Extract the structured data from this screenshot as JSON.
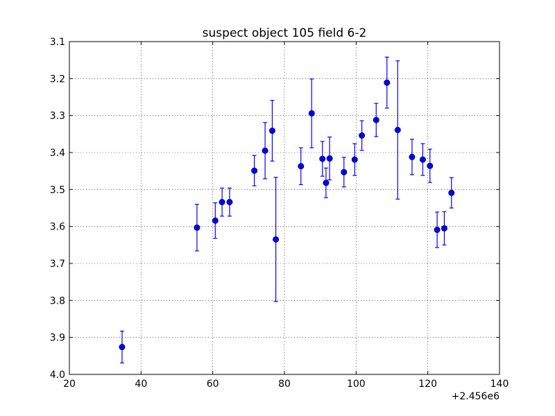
{
  "chart_data": {
    "type": "scatter",
    "title": "suspect object 105 field 6-2",
    "xlabel": "",
    "ylabel": "",
    "x_offset_label": "+2.456e6",
    "xlim": [
      20,
      140
    ],
    "ylim": [
      4.0,
      3.1
    ],
    "y_inverted": true,
    "grid": true,
    "x_ticks": [
      "20",
      "40",
      "60",
      "80",
      "100",
      "120",
      "140"
    ],
    "y_ticks": [
      "3.1",
      "3.2",
      "3.3",
      "3.4",
      "3.5",
      "3.6",
      "3.7",
      "3.8",
      "3.9",
      "4.0"
    ],
    "x_tick_values": [
      20,
      40,
      60,
      80,
      100,
      120,
      140
    ],
    "y_tick_values": [
      3.1,
      3.2,
      3.3,
      3.4,
      3.5,
      3.6,
      3.7,
      3.8,
      3.9,
      4.0
    ],
    "marker_color": "#0000ff",
    "series": [
      {
        "x": [
          34.7,
          55.6,
          60.7,
          62.6,
          64.7,
          71.6,
          74.6,
          76.6,
          77.6,
          84.6,
          87.6,
          90.6,
          91.6,
          92.6,
          96.6,
          99.6,
          101.6,
          105.6,
          108.6,
          111.6,
          115.6,
          118.6,
          120.6,
          122.6,
          124.6,
          126.6
        ],
        "y": [
          3.926,
          3.603,
          3.584,
          3.534,
          3.534,
          3.449,
          3.395,
          3.341,
          3.635,
          3.437,
          3.294,
          3.417,
          3.482,
          3.416,
          3.453,
          3.419,
          3.354,
          3.312,
          3.211,
          3.339,
          3.412,
          3.419,
          3.436,
          3.609,
          3.605,
          3.509
        ],
        "yerr": [
          0.043,
          0.063,
          0.048,
          0.038,
          0.038,
          0.041,
          0.076,
          0.082,
          0.168,
          0.05,
          0.093,
          0.047,
          0.04,
          0.058,
          0.04,
          0.043,
          0.04,
          0.045,
          0.069,
          0.187,
          0.048,
          0.043,
          0.045,
          0.048,
          0.045,
          0.041
        ]
      }
    ]
  }
}
